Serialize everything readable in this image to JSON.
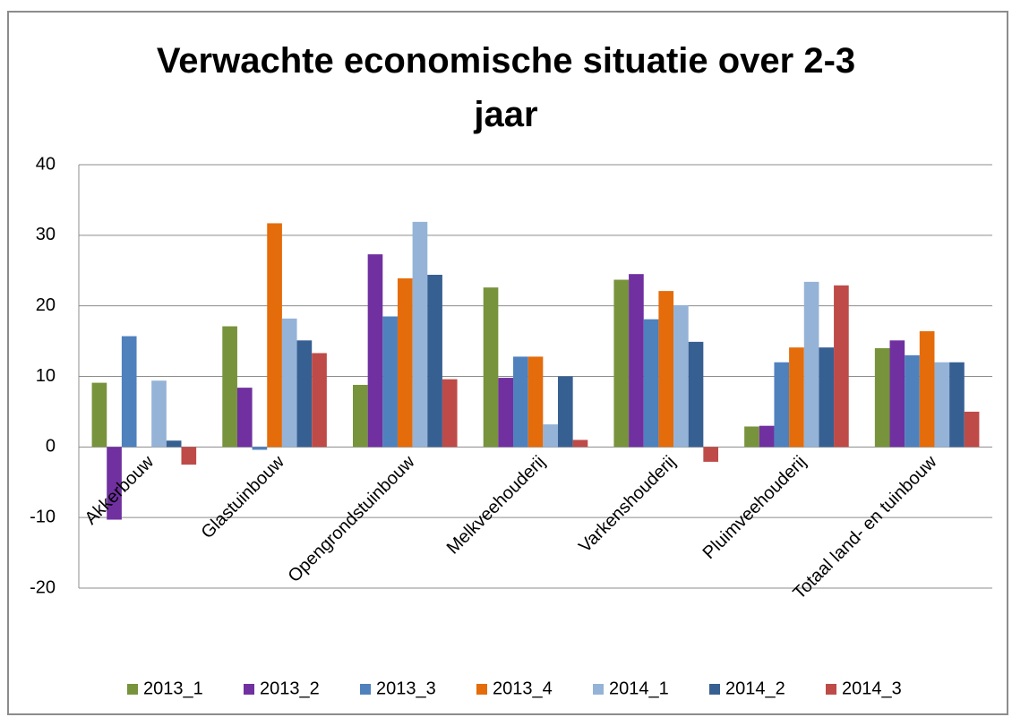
{
  "chart_data": {
    "type": "bar",
    "title": "Verwachte economische situatie over 2-3 jaar",
    "categories": [
      "Akkerbouw",
      "Glastuinbouw",
      "Opengrondstuinbouw",
      "Melkveehouderij",
      "Varkenshouderij",
      "Pluimveehouderij",
      "Totaal land- en tuinbouw"
    ],
    "series": [
      {
        "name": "2013_1",
        "color": "#77933c",
        "values": [
          9.1,
          17.1,
          8.8,
          22.6,
          23.7,
          2.9,
          14.0
        ]
      },
      {
        "name": "2013_2",
        "color": "#7030a0",
        "values": [
          -10.3,
          8.4,
          27.3,
          9.8,
          24.5,
          3.0,
          15.1
        ]
      },
      {
        "name": "2013_3",
        "color": "#4f81bd",
        "values": [
          15.7,
          -0.4,
          18.5,
          12.8,
          18.1,
          12.0,
          13.0
        ]
      },
      {
        "name": "2013_4",
        "color": "#e46c0a",
        "values": [
          0,
          31.7,
          23.9,
          12.8,
          22.1,
          14.1,
          16.4
        ]
      },
      {
        "name": "2014_1",
        "color": "#95b3d7",
        "values": [
          9.4,
          18.2,
          31.9,
          3.2,
          20.1,
          23.4,
          12.0
        ]
      },
      {
        "name": "2014_2",
        "color": "#376092",
        "values": [
          0.9,
          15.1,
          24.4,
          10.0,
          14.9,
          14.1,
          12.0
        ]
      },
      {
        "name": "2014_3",
        "color": "#be4b48",
        "values": [
          -2.5,
          13.3,
          9.6,
          1.0,
          -2.1,
          22.9,
          5.0
        ]
      }
    ],
    "ylim": [
      -20,
      40
    ],
    "yticks": [
      -20,
      -10,
      0,
      10,
      20,
      30,
      40
    ],
    "grid": true,
    "legend": "bottom"
  }
}
